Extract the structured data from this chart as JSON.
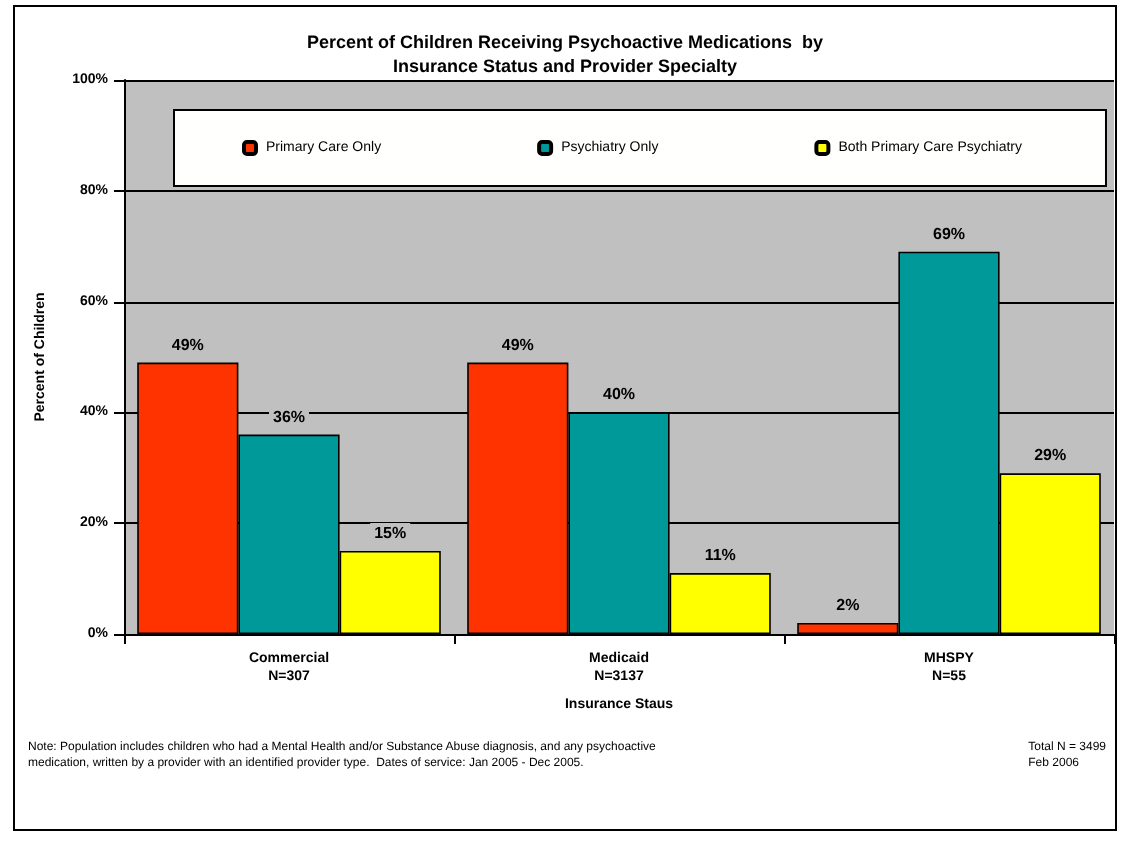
{
  "chart_data": {
    "type": "bar",
    "title": "Percent of Children Receiving Psychoactive Medications  by\nInsurance Status and Provider Specialty",
    "xlabel": "Insurance Staus",
    "ylabel": "Percent of Children",
    "categories": [
      "Commercial\nN=307",
      "Medicaid\nN=3137",
      "MHSPY\nN=55"
    ],
    "series": [
      {
        "name": "Primary Care Only",
        "color": "#ff3300",
        "values": [
          49,
          49,
          2
        ],
        "value_labels": [
          "49%",
          "49%",
          "2%"
        ]
      },
      {
        "name": "Psychiatry Only",
        "color": "#009999",
        "values": [
          36,
          40,
          69
        ],
        "value_labels": [
          "36%",
          "40%",
          "69%"
        ]
      },
      {
        "name": "Both Primary Care Psychiatry",
        "color": "#ffff00",
        "values": [
          15,
          11,
          29
        ],
        "value_labels": [
          "15%",
          "11%",
          "29%"
        ]
      }
    ],
    "ylim": [
      0,
      100
    ],
    "yticks": [
      {
        "value": 0,
        "label": "0%"
      },
      {
        "value": 20,
        "label": "20%"
      },
      {
        "value": 40,
        "label": "40%"
      },
      {
        "value": 60,
        "label": "60%"
      },
      {
        "value": 80,
        "label": "80%"
      },
      {
        "value": 100,
        "label": "100%"
      }
    ],
    "grid": "y",
    "legend": "top",
    "annotations": [
      "Note: Population includes children who had a Mental Health and/or Substance Abuse diagnosis, and any psychoactive\nmedication, written by a provider with an identified provider type.  Dates of service: Jan 2005 - Dec 2005.",
      "Total N = 3499\nFeb 2006"
    ]
  }
}
